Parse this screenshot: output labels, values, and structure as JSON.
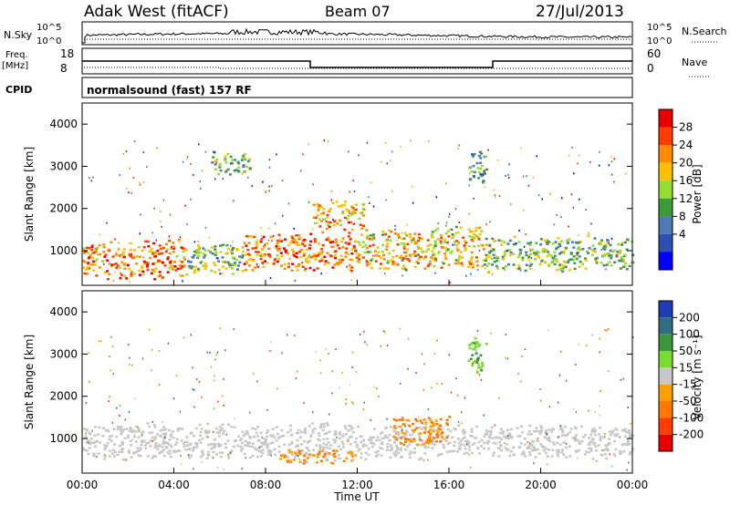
{
  "header": {
    "station": "Adak West (fitACF)",
    "beam": "Beam 07",
    "date": "27/Jul/2013"
  },
  "top_panels": {
    "nsky_label": "N.Sky",
    "nsky_ticks": [
      "10^5",
      "10^0"
    ],
    "nsearch_label": "N.Search",
    "nsearch_ticks": [
      "10^5",
      "10^0"
    ],
    "freq_label": "Freq.",
    "freq_unit": "[MHz]",
    "freq_ticks": [
      "18",
      "8"
    ],
    "nave_label": "Nave",
    "nave_ticks": [
      "60",
      "0"
    ],
    "cpid_label": "CPID",
    "cpid_text": "normalsound (fast) 157 RF"
  },
  "axes": {
    "ylabel": "Slant Range [km]",
    "yticks": [
      "4000",
      "3000",
      "2000",
      "1000"
    ],
    "xlabel": "Time UT",
    "xticks": [
      "00:00",
      "04:00",
      "08:00",
      "12:00",
      "16:00",
      "20:00",
      "00:00"
    ]
  },
  "power_colorbar": {
    "label": "Power [dB]",
    "ticks": [
      "28",
      "24",
      "20",
      "16",
      "12",
      "8",
      "4"
    ],
    "colors": [
      "#e80000",
      "#ff3c00",
      "#ff8c00",
      "#ffc000",
      "#96dc32",
      "#3c9c3c",
      "#507ab4",
      "#2d4eb4",
      "#0000ff"
    ]
  },
  "velocity_colorbar": {
    "label": "Velocity [m s⁻¹]",
    "ticks": [
      "200",
      "100",
      "50",
      "15",
      "-15",
      "-50",
      "-100",
      "-200"
    ],
    "colors": [
      "#1e3cb4",
      "#326e82",
      "#3c963c",
      "#78dc32",
      "#c8c8c8",
      "#ffa000",
      "#ff7800",
      "#ff3c00",
      "#e60000"
    ]
  },
  "chart_data": [
    {
      "type": "heatmap",
      "title": "Power",
      "xlabel": "Time UT",
      "ylabel": "Slant Range [km]",
      "xlim": [
        "00:00",
        "24:00"
      ],
      "ylim": [
        180,
        4500
      ],
      "colorbar_label": "Power [dB]",
      "colorbar_range": [
        0,
        32
      ],
      "regions": [
        {
          "t_start": 0.0,
          "t_end": 4.5,
          "r_min": 300,
          "r_max": 1300,
          "value_db": 24
        },
        {
          "t_start": 4.5,
          "t_end": 7.0,
          "r_min": 400,
          "r_max": 1250,
          "value_db": 14
        },
        {
          "t_start": 5.5,
          "t_end": 7.3,
          "r_min": 2800,
          "r_max": 3400,
          "value_db": 12
        },
        {
          "t_start": 7.0,
          "t_end": 12.0,
          "r_min": 500,
          "r_max": 1500,
          "value_db": 24
        },
        {
          "t_start": 10.0,
          "t_end": 12.3,
          "r_min": 1500,
          "r_max": 2200,
          "value_db": 22
        },
        {
          "t_start": 12.0,
          "t_end": 17.5,
          "r_min": 500,
          "r_max": 1600,
          "value_db": 20
        },
        {
          "t_start": 17.5,
          "t_end": 24.0,
          "r_min": 500,
          "r_max": 1400,
          "value_db": 14
        },
        {
          "t_start": 16.8,
          "t_end": 17.6,
          "r_min": 2600,
          "r_max": 3500,
          "value_db": 10
        }
      ]
    },
    {
      "type": "heatmap",
      "title": "Velocity",
      "xlabel": "Time UT",
      "ylabel": "Slant Range [km]",
      "xlim": [
        "00:00",
        "24:00"
      ],
      "ylim": [
        180,
        4500
      ],
      "colorbar_label": "Velocity [m s⁻¹]",
      "colorbar_range": [
        -250,
        250
      ],
      "regions": [
        {
          "t_start": 0.0,
          "t_end": 24.0,
          "r_min": 500,
          "r_max": 1400,
          "value_ms": 0
        },
        {
          "t_start": 13.5,
          "t_end": 16.0,
          "r_min": 800,
          "r_max": 1600,
          "value_ms": -60
        },
        {
          "t_start": 8.5,
          "t_end": 12.0,
          "r_min": 400,
          "r_max": 800,
          "value_ms": -40
        },
        {
          "t_start": 16.8,
          "t_end": 17.6,
          "r_min": 2500,
          "r_max": 3500,
          "value_ms": 40
        }
      ]
    }
  ]
}
